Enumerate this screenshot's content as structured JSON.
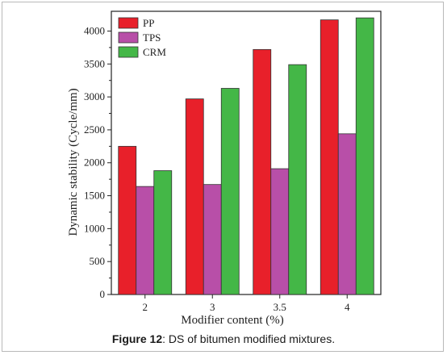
{
  "chart_data": {
    "type": "bar",
    "title": "",
    "xlabel": "Modifier content (%)",
    "ylabel": "Dynamic stability (Cycle/mm)",
    "categories": [
      "2",
      "3",
      "3.5",
      "4"
    ],
    "ylim": [
      0,
      4300
    ],
    "yticks": [
      0,
      500,
      1000,
      1500,
      2000,
      2500,
      3000,
      3500,
      4000
    ],
    "legend_position": "top-left",
    "grid": false,
    "series": [
      {
        "name": "PP",
        "color": "#e8202a",
        "values": [
          2250,
          2970,
          3720,
          4170
        ]
      },
      {
        "name": "TPS",
        "color": "#b84fa8",
        "values": [
          1640,
          1670,
          1910,
          2440
        ]
      },
      {
        "name": "CRM",
        "color": "#44b747",
        "values": [
          1880,
          3130,
          3490,
          4200
        ]
      }
    ]
  },
  "caption": {
    "label": "Figure 12",
    "text": ": DS of bitumen modified mixtures."
  }
}
